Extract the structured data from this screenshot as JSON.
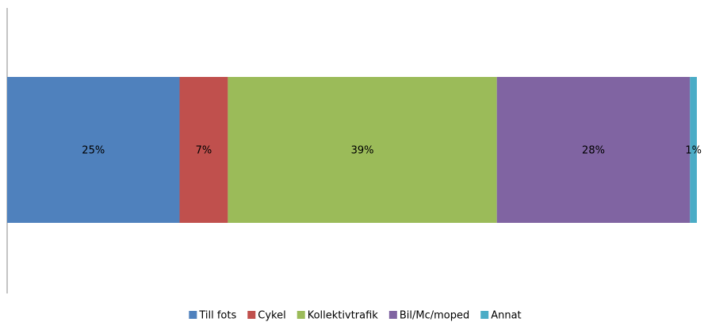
{
  "chart_data": {
    "type": "bar",
    "orientation": "horizontal",
    "stacked": true,
    "categories": [
      null
    ],
    "series": [
      {
        "name": "Till fots",
        "color": "#4f81bd",
        "values": [
          25
        ],
        "value_labels": [
          "25%"
        ]
      },
      {
        "name": "Cykel",
        "color": "#c0504d",
        "values": [
          7
        ],
        "value_labels": [
          "7%"
        ]
      },
      {
        "name": "Kollektivtrafik",
        "color": "#9bbb59",
        "values": [
          39
        ],
        "value_labels": [
          "39%"
        ]
      },
      {
        "name": "Bil/Mc/moped",
        "color": "#8064a2",
        "values": [
          28
        ],
        "value_labels": [
          "28%"
        ]
      },
      {
        "name": "Annat",
        "color": "#4bacc6",
        "values": [
          1
        ],
        "value_labels": [
          "1%"
        ]
      }
    ],
    "xlim": [
      0,
      100
    ],
    "legend": "bottom"
  }
}
